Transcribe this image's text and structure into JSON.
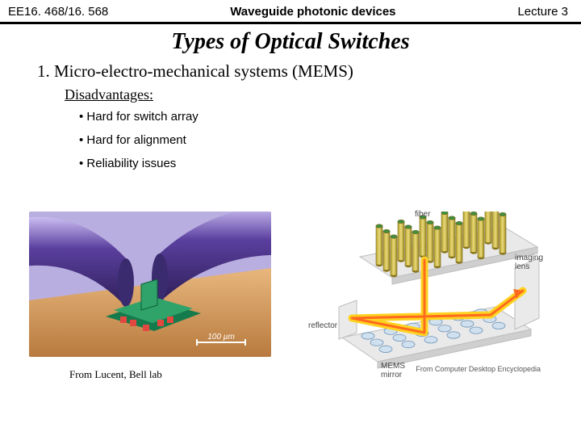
{
  "header": {
    "left": "EE16. 468/16. 568",
    "center": "Waveguide photonic devices",
    "right": "Lecture 3"
  },
  "title": "Types of Optical Switches",
  "item1": "1. Micro-electro-mechanical systems  (MEMS)",
  "subhead": " Disadvantages:",
  "bullets": [
    "• Hard for switch array",
    "• Hard for alignment",
    "• Reliability issues"
  ],
  "figure1": {
    "caption": "From Lucent, Bell lab",
    "scalebar_label": "100 µm",
    "colors": {
      "background": "#b9aee0",
      "floor": "#d9a26a",
      "cylinder_body": "#5a3f9e",
      "cylinder_highlight": "#c3b5ef",
      "chip": "#2fa36a",
      "chip_dark": "#157a4c",
      "pads": "#e2483f"
    }
  },
  "figure2": {
    "caption": "From Computer Desktop Encyclopedia",
    "labels": {
      "fiber": "fiber",
      "imaging_lens": "imaging\nlens",
      "reflector": "reflector",
      "mems": "MEMS\nmirror"
    },
    "colors": {
      "top_plate": "#e9e9e9",
      "top_plate_edge": "#bdbdbd",
      "bottom_plate": "#e9e9e9",
      "bottom_plate_edge": "#bdbdbd",
      "pillar_body": "#d7c24a",
      "pillar_top": "#3f8f3f",
      "pillar_outline": "#7a6b1f",
      "mirror_fill": "#cfe0ef",
      "mirror_edge": "#6f93b6",
      "beam": "#ffd21f",
      "beam_core": "#ff3b2f",
      "label_color": "#555555"
    },
    "layout": {
      "pillar_rows": 3,
      "pillar_cols": 6,
      "mirror_rows": 3,
      "mirror_cols": 6
    }
  }
}
